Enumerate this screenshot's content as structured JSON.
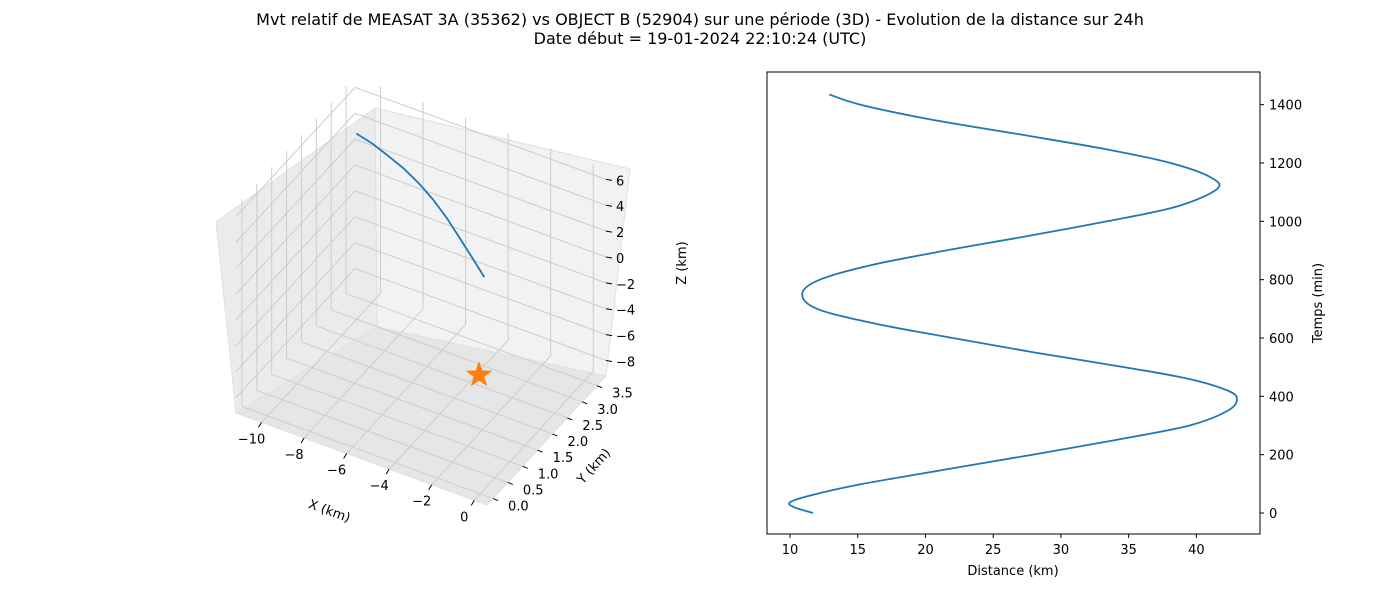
{
  "figure": {
    "title_line1": "Mvt relatif de MEASAT 3A (35362) vs OBJECT B (52904) sur une période (3D) - Evolution de la distance sur 24h",
    "title_line2": "Date début = 19-01-2024 22:10:24 (UTC)"
  },
  "colors": {
    "series": "#1f77b4",
    "marker": "#ff7f0e",
    "pane": "#f2f2f2",
    "grid": "#cccccc"
  },
  "chart_data": [
    {
      "type": "line3d",
      "xlabel": "X (km)",
      "ylabel": "Y (km)",
      "zlabel": "Z (km)",
      "x_ticks": [
        "−10",
        "−8",
        "−6",
        "−4",
        "−2",
        "0"
      ],
      "y_ticks": [
        "0.0",
        "0.5",
        "1.0",
        "1.5",
        "2.0",
        "2.5",
        "3.0",
        "3.5"
      ],
      "z_ticks": [
        "6",
        "4",
        "2",
        "0",
        "−2",
        "−4",
        "−6",
        "−8"
      ],
      "xlim": [
        -11.2,
        0.6
      ],
      "ylim": [
        -0.2,
        3.8
      ],
      "zlim": [
        -9.2,
        6.8
      ],
      "grid": true,
      "trajectory": {
        "x": [
          -11.0,
          -10.3,
          -9.6,
          -8.9,
          -8.2,
          -7.5,
          -6.8,
          -6.1,
          -5.4,
          -4.7
        ],
        "y": [
          3.7,
          3.75,
          3.78,
          3.8,
          3.8,
          3.78,
          3.74,
          3.68,
          3.6,
          3.5
        ],
        "z": [
          2.8,
          2.3,
          1.7,
          1.1,
          0.4,
          -0.4,
          -1.3,
          -2.3,
          -3.2,
          -4.0
        ]
      },
      "marker": {
        "x": 0,
        "y": 0,
        "z": 0,
        "symbol": "star"
      }
    },
    {
      "type": "line",
      "xlabel": "Distance (km)",
      "ylabel": "Temps (min)",
      "x_ticks": [
        "10",
        "15",
        "20",
        "25",
        "30",
        "35",
        "40"
      ],
      "y_ticks": [
        "0",
        "200",
        "400",
        "600",
        "800",
        "1000",
        "1200",
        "1400"
      ],
      "xlim": [
        8.3,
        44.7
      ],
      "ylim": [
        -72,
        1512
      ],
      "grid": false,
      "series": [
        {
          "t": [
            0,
            20,
            37,
            60,
            100,
            150,
            200,
            250,
            300,
            350,
            390,
            420,
            460,
            500,
            550,
            600,
            650,
            700,
            752,
            800,
            850,
            900,
            950,
            1000,
            1050,
            1110,
            1150,
            1200,
            1250,
            1300,
            1350,
            1400,
            1435
          ],
          "distance": [
            11.7,
            10.3,
            10.0,
            11.5,
            15.4,
            21.6,
            27.9,
            34.0,
            39.5,
            42.3,
            43.0,
            42.3,
            39.4,
            34.7,
            28.1,
            22.0,
            16.2,
            12.0,
            10.9,
            12.2,
            16.0,
            21.5,
            27.6,
            33.4,
            38.5,
            41.5,
            41.1,
            38.1,
            33.0,
            26.7,
            20.3,
            15.2,
            12.9
          ]
        }
      ]
    }
  ]
}
